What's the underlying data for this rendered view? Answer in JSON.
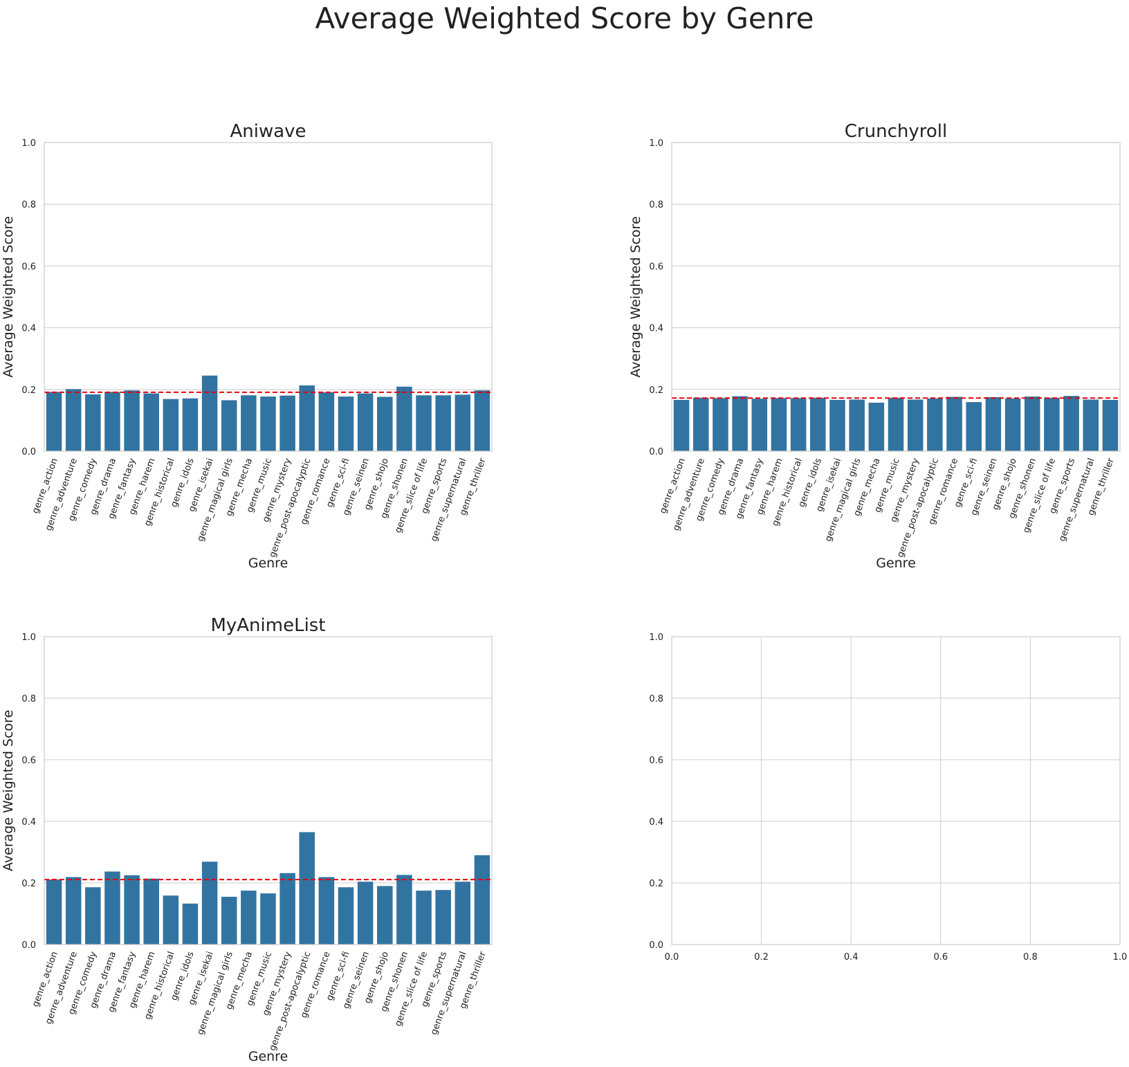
{
  "suptitle": "Average Weighted Score by Genre",
  "colors": {
    "bar": "#3274a1",
    "mean_line": "#e8000b",
    "grid": "#cccccc",
    "spine": "#cccccc",
    "text": "#222222"
  },
  "chart_data": [
    {
      "type": "bar",
      "title": "Aniwave",
      "xlabel": "Genre",
      "ylabel": "Average Weighted Score",
      "ylim": [
        0,
        1
      ],
      "yticks": [
        "0.0",
        "0.2",
        "0.4",
        "0.6",
        "0.8",
        "1.0"
      ],
      "grid": "y",
      "categories": [
        "genre_action",
        "genre_adventure",
        "genre_comedy",
        "genre_drama",
        "genre_fantasy",
        "genre_harem",
        "genre_historical",
        "genre_idols",
        "genre_isekai",
        "genre_magical girls",
        "genre_mecha",
        "genre_music",
        "genre_mystery",
        "genre_post-apocalyptic",
        "genre_romance",
        "genre_sci-fi",
        "genre_seinen",
        "genre_shojo",
        "genre_shonen",
        "genre_slice of life",
        "genre_sports",
        "genre_supernatural",
        "genre_thriller"
      ],
      "values": [
        0.192,
        0.201,
        0.184,
        0.192,
        0.197,
        0.187,
        0.169,
        0.171,
        0.245,
        0.165,
        0.181,
        0.177,
        0.18,
        0.213,
        0.191,
        0.177,
        0.187,
        0.176,
        0.209,
        0.181,
        0.181,
        0.183,
        0.197
      ],
      "mean_line": 0.191
    },
    {
      "type": "bar",
      "title": "Crunchyroll",
      "xlabel": "Genre",
      "ylabel": "Average Weighted Score",
      "ylim": [
        0,
        1
      ],
      "yticks": [
        "0.0",
        "0.2",
        "0.4",
        "0.6",
        "0.8",
        "1.0"
      ],
      "grid": "y",
      "categories": [
        "genre_action",
        "genre_adventure",
        "genre_comedy",
        "genre_drama",
        "genre_fantasy",
        "genre_harem",
        "genre_historical",
        "genre_idols",
        "genre_isekai",
        "genre_magical girls",
        "genre_mecha",
        "genre_music",
        "genre_mystery",
        "genre_post-apocalyptic",
        "genre_romance",
        "genre_sci-fi",
        "genre_seinen",
        "genre_shojo",
        "genre_shonen",
        "genre_slice of life",
        "genre_sports",
        "genre_supernatural",
        "genre_thriller"
      ],
      "values": [
        0.166,
        0.173,
        0.172,
        0.178,
        0.17,
        0.172,
        0.172,
        0.173,
        0.166,
        0.167,
        0.157,
        0.173,
        0.167,
        0.171,
        0.176,
        0.159,
        0.175,
        0.171,
        0.177,
        0.173,
        0.179,
        0.167,
        0.166
      ],
      "mean_line": 0.172
    },
    {
      "type": "bar",
      "title": "MyAnimeList",
      "xlabel": "Genre",
      "ylabel": "Average Weighted Score",
      "ylim": [
        0,
        1
      ],
      "yticks": [
        "0.0",
        "0.2",
        "0.4",
        "0.6",
        "0.8",
        "1.0"
      ],
      "grid": "y",
      "categories": [
        "genre_action",
        "genre_adventure",
        "genre_comedy",
        "genre_drama",
        "genre_fantasy",
        "genre_harem",
        "genre_historical",
        "genre_idols",
        "genre_isekai",
        "genre_magical girls",
        "genre_mecha",
        "genre_music",
        "genre_mystery",
        "genre_post-apocalyptic",
        "genre_romance",
        "genre_sci-fi",
        "genre_seinen",
        "genre_shojo",
        "genre_shonen",
        "genre_slice of life",
        "genre_sports",
        "genre_supernatural",
        "genre_thriller"
      ],
      "values": [
        0.211,
        0.219,
        0.186,
        0.237,
        0.225,
        0.214,
        0.159,
        0.133,
        0.269,
        0.155,
        0.175,
        0.166,
        0.232,
        0.365,
        0.219,
        0.186,
        0.204,
        0.19,
        0.226,
        0.175,
        0.177,
        0.204,
        0.29
      ],
      "mean_line": 0.211
    },
    {
      "type": "empty",
      "title": "",
      "xlim": [
        0,
        1
      ],
      "ylim": [
        0,
        1
      ],
      "xticks": [
        "0.0",
        "0.2",
        "0.4",
        "0.6",
        "0.8",
        "1.0"
      ],
      "yticks": [
        "0.0",
        "0.2",
        "0.4",
        "0.6",
        "0.8",
        "1.0"
      ],
      "grid": "both"
    }
  ]
}
